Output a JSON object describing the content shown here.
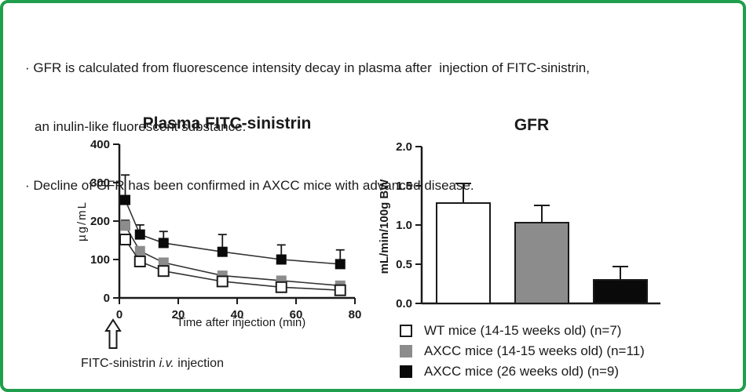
{
  "header": {
    "line1": "· GFR is calculated from fluorescence intensity decay in plasma after  injection of FITC-sinistrin,",
    "line2": "an inulin-like fluorescent substance.",
    "line3": "· Decline of GFR has been confirmed in AXCC mice with advanced disease."
  },
  "colors": {
    "frame_border_green": "#1f9e4d",
    "text": "#1a1a1a",
    "wt_fill": "#ffffff",
    "axcc_14_15_fill": "#8c8c8c",
    "axcc_26_fill": "#0a0a0a",
    "axis": "#1a1a1a"
  },
  "chart_data": [
    {
      "type": "line",
      "title": "Plasma FITC-sinistrin",
      "xlabel": "Time after injection (min)",
      "ylabel": "µg/mL",
      "x": [
        2,
        7,
        15,
        35,
        55,
        75
      ],
      "xlim": [
        0,
        80
      ],
      "xticks": [
        0,
        20,
        40,
        60,
        80
      ],
      "ylim": [
        0,
        400
      ],
      "yticks": [
        0,
        100,
        200,
        300,
        400
      ],
      "grid": false,
      "marker": "square",
      "series": [
        {
          "name": "AXCC mice (26 weeks old) (n=9)",
          "fill": "#0a0a0a",
          "values": [
            255,
            165,
            143,
            120,
            100,
            88
          ],
          "err_up": [
            65,
            25,
            30,
            45,
            38,
            37
          ]
        },
        {
          "name": "AXCC mice (14-15 weeks old) (n=11)",
          "fill": "#8c8c8c",
          "values": [
            188,
            122,
            92,
            58,
            45,
            32
          ],
          "err_up": [
            14,
            10,
            8,
            8,
            8,
            8
          ]
        },
        {
          "name": "WT mice (14-15 weeks old) (n=7)",
          "fill": "#ffffff",
          "values": [
            152,
            95,
            70,
            43,
            28,
            20
          ],
          "err_up": [
            10,
            8,
            6,
            6,
            6,
            6
          ]
        }
      ],
      "annotation": {
        "pre": "FITC-sinistrin ",
        "italic": "i.v.",
        "post": " injection",
        "arrow": "hollow-up-arrow-at-x0"
      }
    },
    {
      "type": "bar",
      "title": "GFR",
      "xlabel": "",
      "ylabel": "mL/min/100g BW",
      "categories": [
        "WT mice (14-15 weeks old) (n=7)",
        "AXCC mice (14-15 weeks old) (n=11)",
        "AXCC mice (26 weeks old) (n=9)"
      ],
      "values": [
        1.28,
        1.03,
        0.3
      ],
      "errors_up": [
        0.25,
        0.22,
        0.17
      ],
      "bar_fills": [
        "#ffffff",
        "#8c8c8c",
        "#0a0a0a"
      ],
      "ylim": [
        0,
        2.0
      ],
      "yticks": [
        0.0,
        0.5,
        1.0,
        1.5,
        2.0
      ],
      "grid": false,
      "legend_position": "below-right"
    }
  ],
  "legend": {
    "items": [
      {
        "label": "WT mice (14-15 weeks old) (n=7)",
        "fill": "#ffffff",
        "border": true
      },
      {
        "label": "AXCC mice (14-15 weeks old) (n=11)",
        "fill": "#8c8c8c",
        "border": false
      },
      {
        "label": "AXCC mice (26 weeks old) (n=9)",
        "fill": "#0a0a0a",
        "border": false
      }
    ]
  }
}
